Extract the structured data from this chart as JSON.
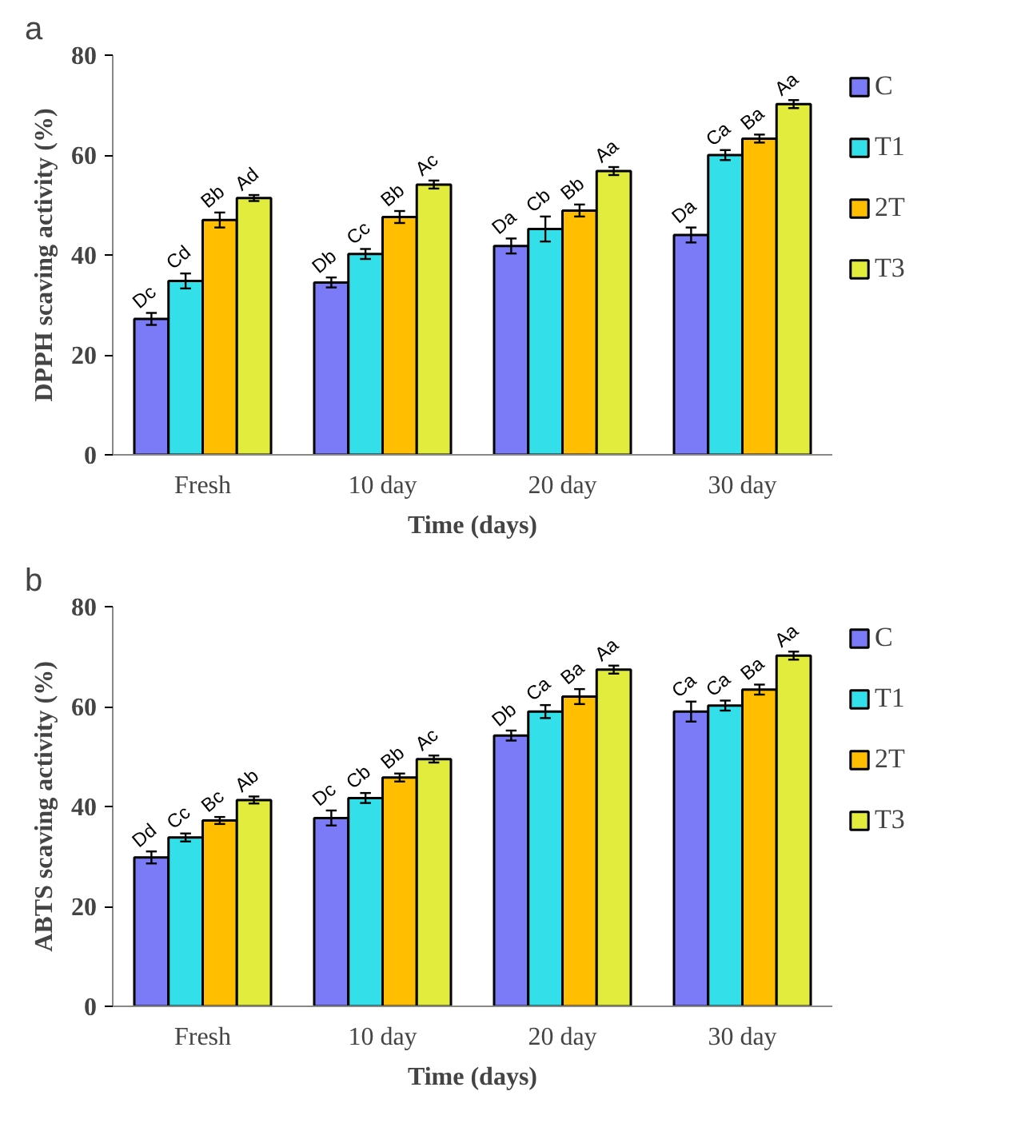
{
  "chart_data": [
    {
      "type": "bar",
      "title": "a",
      "xlabel": "Time (days)",
      "ylabel": "DPPH scaving activity (%)",
      "categories": [
        "Fresh",
        "10 day",
        "20 day",
        "30 day"
      ],
      "ylim": [
        0,
        80
      ],
      "yticks": [
        0,
        20,
        40,
        60,
        80
      ],
      "grid": false,
      "legend": "right",
      "series": [
        {
          "name": "C",
          "color": "#7b7bf7",
          "values": [
            27.2,
            34.5,
            41.8,
            44.0
          ],
          "errors": [
            1.2,
            1.0,
            1.5,
            1.5
          ],
          "value_labels": [
            "Dc",
            "Db",
            "Da",
            "Da"
          ]
        },
        {
          "name": "T1",
          "color": "#33e0ea",
          "values": [
            34.8,
            40.2,
            45.2,
            60.0
          ],
          "errors": [
            1.5,
            1.0,
            2.5,
            1.0
          ],
          "value_labels": [
            "Cd",
            "Cc",
            "Cb",
            "Ca"
          ]
        },
        {
          "name": "2T",
          "color": "#ffbf00",
          "values": [
            47.0,
            47.6,
            48.9,
            63.3
          ],
          "errors": [
            1.5,
            1.2,
            1.2,
            0.8
          ],
          "value_labels": [
            "Bb",
            "Bb",
            "Bb",
            "Ba"
          ]
        },
        {
          "name": "T3",
          "color": "#e1ec3d",
          "values": [
            51.4,
            54.1,
            56.8,
            70.2
          ],
          "errors": [
            0.6,
            0.8,
            0.8,
            0.8
          ],
          "value_labels": [
            "Ad",
            "Ac",
            "Aa",
            "Aa"
          ]
        }
      ]
    },
    {
      "type": "bar",
      "title": "b",
      "xlabel": "Time (days)",
      "ylabel": "ABTS scaving activity (%)",
      "categories": [
        "Fresh",
        "10 day",
        "20 day",
        "30 day"
      ],
      "ylim": [
        0,
        80
      ],
      "yticks": [
        0,
        20,
        40,
        60,
        80
      ],
      "grid": false,
      "legend": "right",
      "series": [
        {
          "name": "C",
          "color": "#7b7bf7",
          "values": [
            29.8,
            37.7,
            54.2,
            59.0
          ],
          "errors": [
            1.2,
            1.5,
            1.0,
            2.0
          ],
          "value_labels": [
            "Dd",
            "Dc",
            "Db",
            "Ca"
          ]
        },
        {
          "name": "T1",
          "color": "#33e0ea",
          "values": [
            33.8,
            41.7,
            59.0,
            60.2
          ],
          "errors": [
            0.8,
            1.0,
            1.3,
            1.0
          ],
          "value_labels": [
            "Cc",
            "Cb",
            "Ca",
            "Ca"
          ]
        },
        {
          "name": "2T",
          "color": "#ffbf00",
          "values": [
            37.2,
            45.8,
            62.0,
            63.4
          ],
          "errors": [
            0.7,
            0.8,
            1.5,
            1.0
          ],
          "value_labels": [
            "Bc",
            "Bb",
            "Ba",
            "Ba"
          ]
        },
        {
          "name": "T3",
          "color": "#e1ec3d",
          "values": [
            41.3,
            49.5,
            67.4,
            70.2
          ],
          "errors": [
            0.7,
            0.7,
            0.8,
            0.8
          ],
          "value_labels": [
            "Ab",
            "Ac",
            "Aa",
            "Aa"
          ]
        }
      ]
    }
  ]
}
